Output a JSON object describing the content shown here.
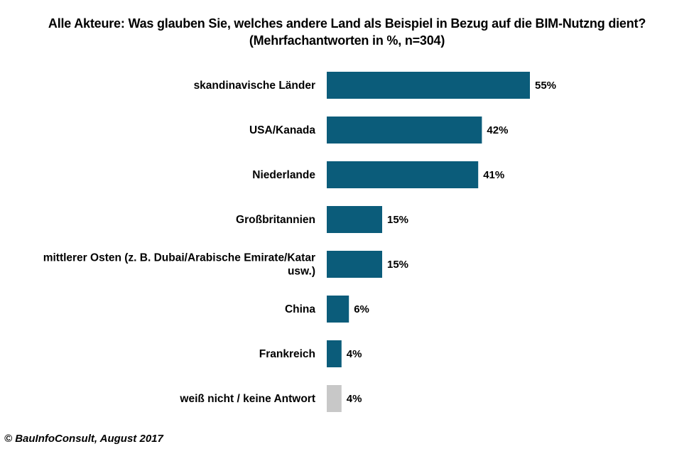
{
  "chart_data": {
    "type": "bar",
    "orientation": "horizontal",
    "title": "Alle Akteure: Was glauben Sie, welches andere Land als Beispiel in Bezug auf die BIM-Nutzng dient?",
    "subtitle": "(Mehrfachantworten in %, n=304)",
    "categories": [
      [
        "skandinavische Länder"
      ],
      [
        "USA/Kanada"
      ],
      [
        "Niederlande"
      ],
      [
        "Großbritannien"
      ],
      [
        "mittlerer Osten (z. B. Dubai/Arabische Emirate/Katar",
        "usw.)"
      ],
      [
        "China"
      ],
      [
        "Frankreich"
      ],
      [
        "weiß nicht / keine Antwort"
      ]
    ],
    "values": [
      55,
      42,
      41,
      15,
      15,
      6,
      4,
      4
    ],
    "value_labels": [
      "55%",
      "42%",
      "41%",
      "15%",
      "15%",
      "6%",
      "4%",
      "4%"
    ],
    "bar_colors": [
      "#0b5c7a",
      "#0b5c7a",
      "#0b5c7a",
      "#0b5c7a",
      "#0b5c7a",
      "#0b5c7a",
      "#0b5c7a",
      "#c8c8c8"
    ],
    "xlim": [
      0,
      100
    ],
    "grid": false,
    "legend": "none"
  },
  "footer": "© BauInfoConsult, August 2017"
}
